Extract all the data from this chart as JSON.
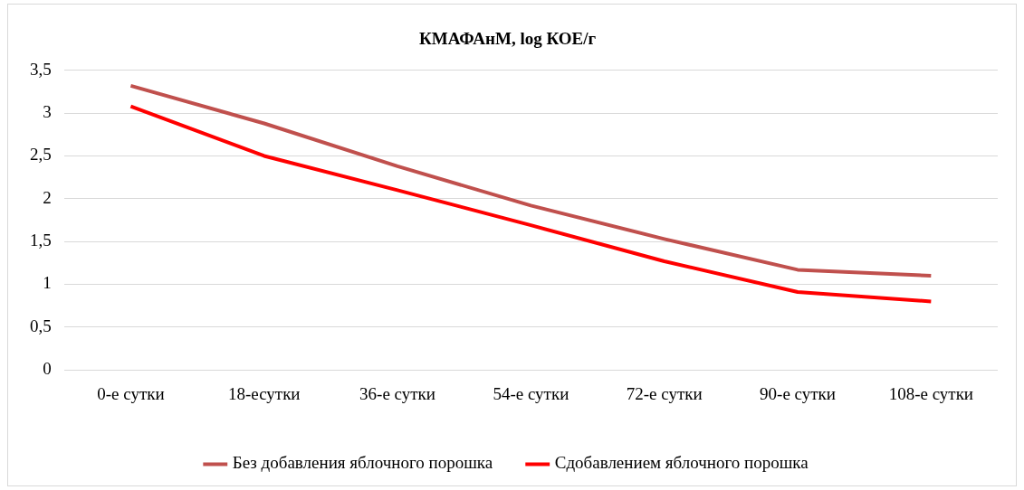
{
  "chart_data": {
    "type": "line",
    "title": "КМАФАнМ, log КОЕ/г",
    "categories": [
      "0-е сутки",
      "18-есутки",
      "36-е сутки",
      "54-е сутки",
      "72-е сутки",
      "90-е сутки",
      "108-е сутки"
    ],
    "series": [
      {
        "name": "Без добавления яблочного порошка",
        "color": "#c0504d",
        "values": [
          3.32,
          2.88,
          2.38,
          1.92,
          1.53,
          1.17,
          1.1
        ]
      },
      {
        "name": "Сдобавлением яблочного порошка",
        "color": "#ff0000",
        "values": [
          3.08,
          2.5,
          2.1,
          1.69,
          1.27,
          0.91,
          0.8
        ]
      }
    ],
    "ylim": [
      0,
      3.5
    ],
    "yticks": [
      0,
      {
        "value": 0.5,
        "label": "0,5"
      },
      1,
      {
        "value": 1.5,
        "label": "1,5"
      },
      2,
      {
        "value": 2.5,
        "label": "2,5"
      },
      3,
      {
        "value": 3.5,
        "label": "3,5"
      }
    ],
    "grid": "y",
    "legend": "bottom",
    "marker": "none",
    "line_style": "solid"
  }
}
